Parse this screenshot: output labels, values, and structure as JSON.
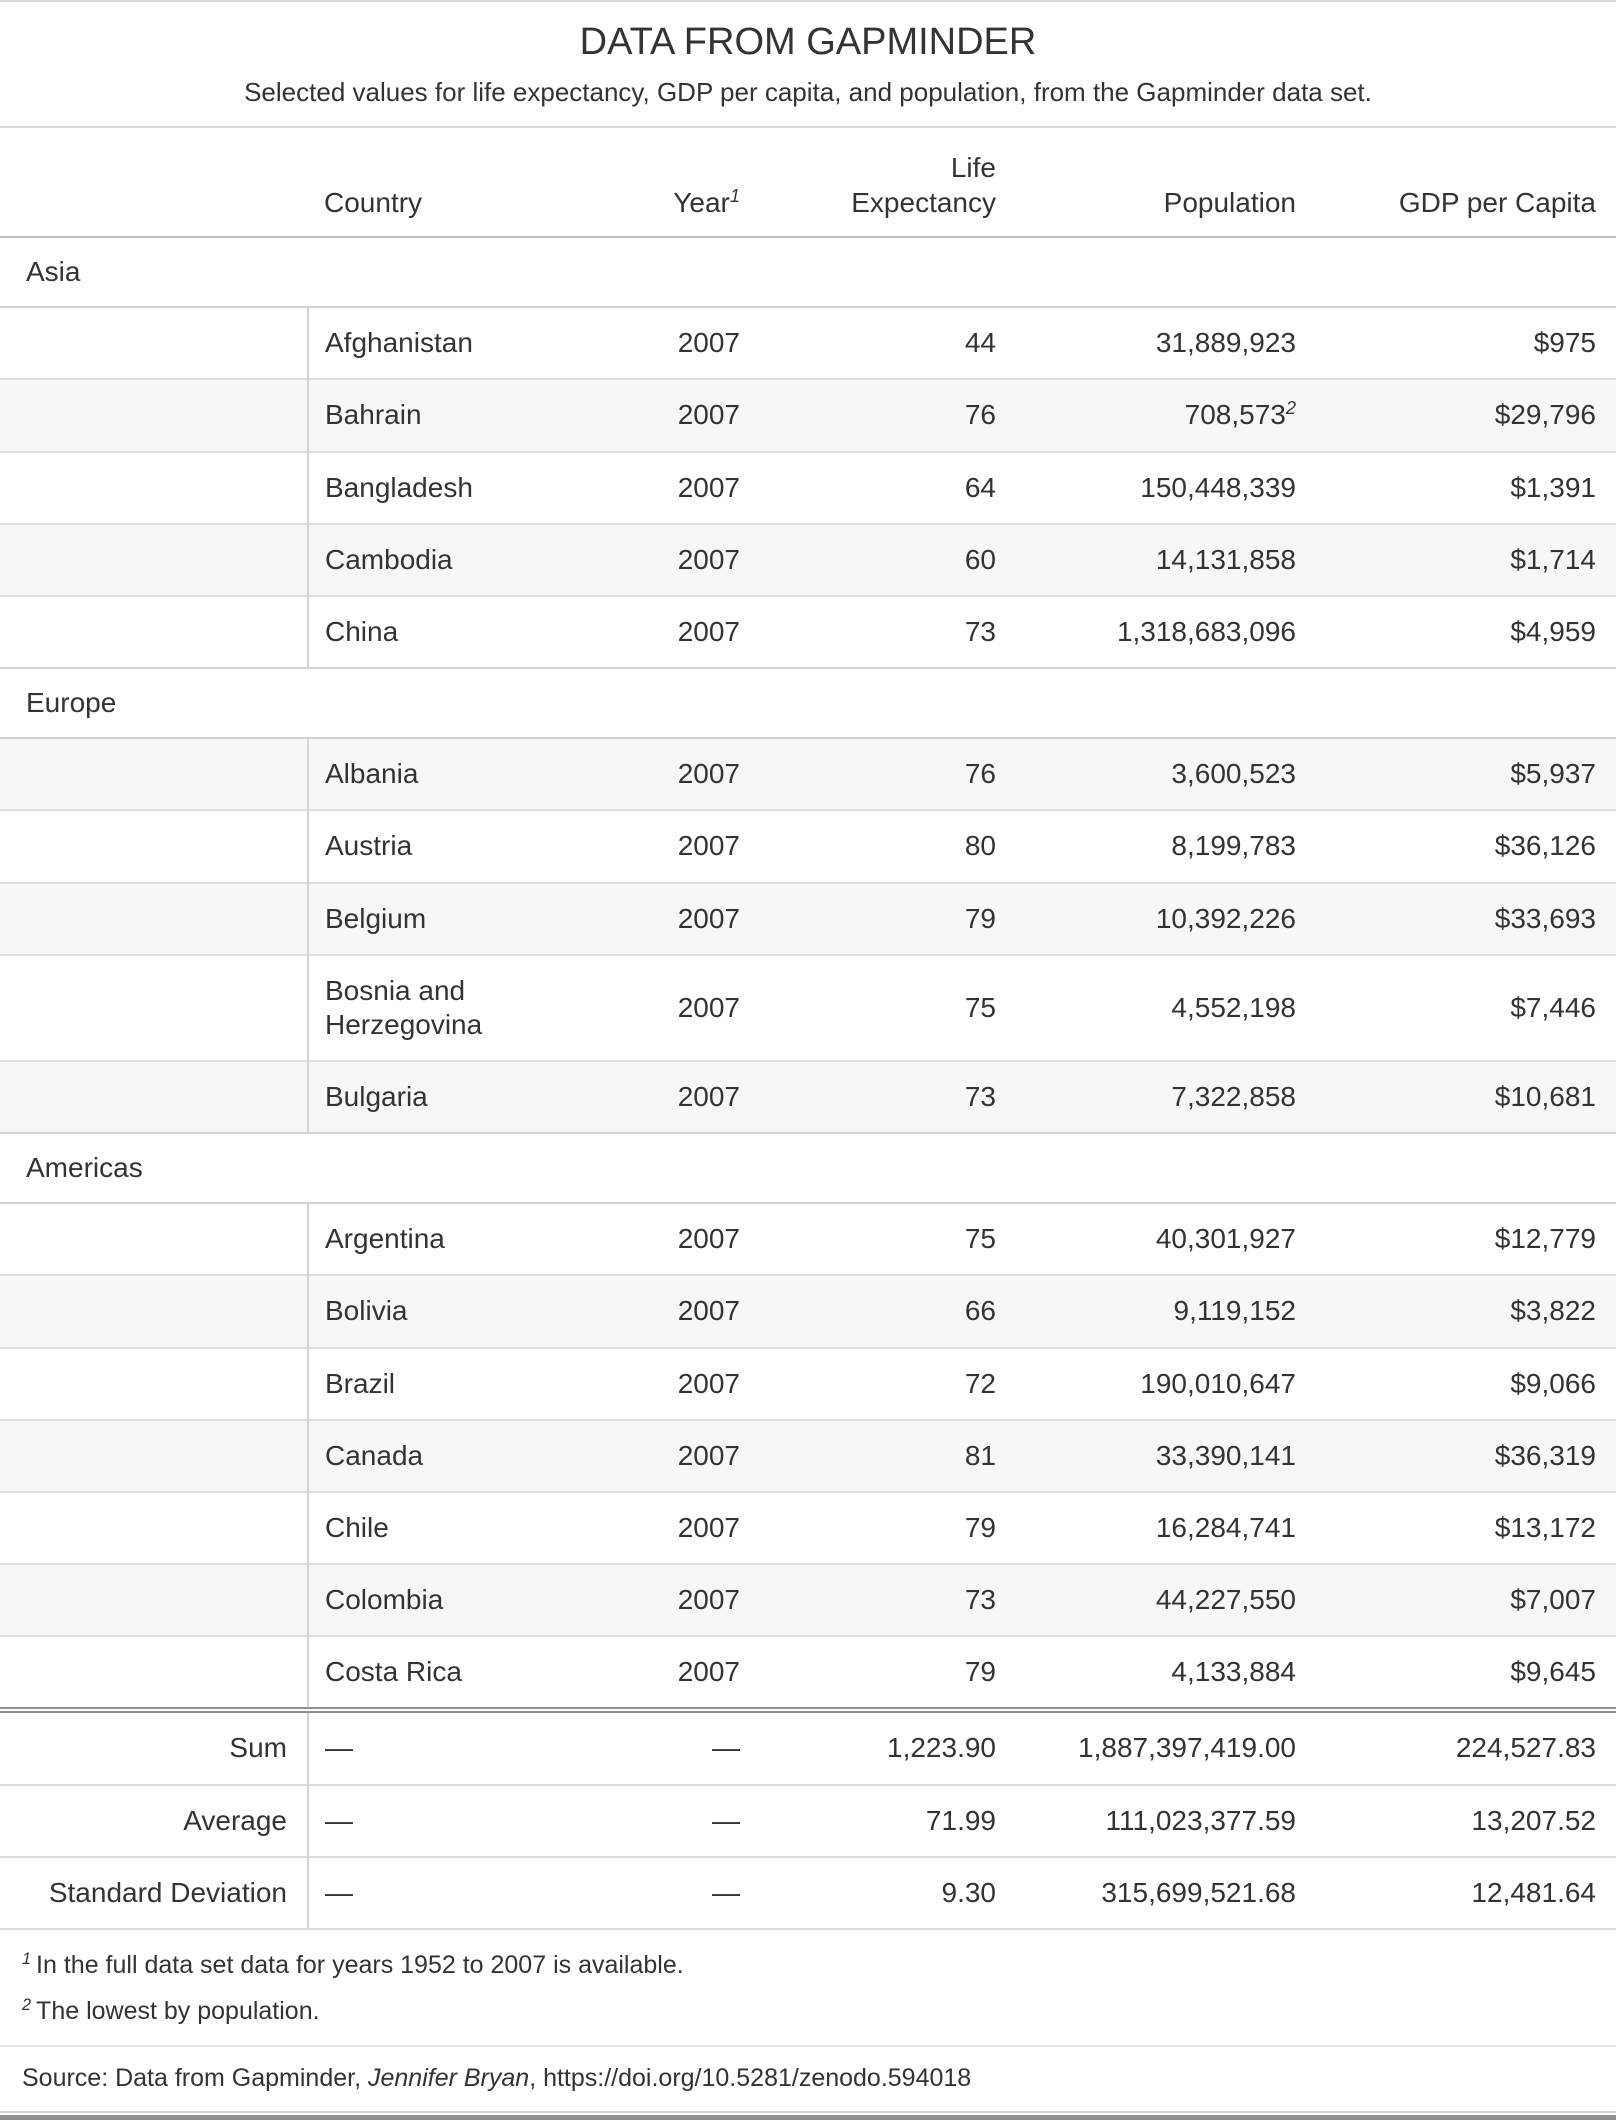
{
  "chart_data": {
    "type": "table",
    "title": "DATA FROM GAPMINDER",
    "subtitle": "Selected values for life expectancy, GDP per capita, and population, from the Gapminder data set.",
    "column_labels": {
      "stub": "",
      "country": "Country",
      "year": "Year",
      "year_footnote_mark": "1",
      "life_expectancy": "Life Expectancy",
      "population": "Population",
      "gdp_per_capita": "GDP per Capita"
    },
    "groups": [
      {
        "label": "Asia",
        "rows": [
          {
            "country": "Afghanistan",
            "year": "2007",
            "life_expectancy": "44",
            "population": "31,889,923",
            "gdp_per_capita": "$975"
          },
          {
            "country": "Bahrain",
            "year": "2007",
            "life_expectancy": "76",
            "population": "708,573",
            "population_footnote_mark": "2",
            "gdp_per_capita": "$29,796"
          },
          {
            "country": "Bangladesh",
            "year": "2007",
            "life_expectancy": "64",
            "population": "150,448,339",
            "gdp_per_capita": "$1,391"
          },
          {
            "country": "Cambodia",
            "year": "2007",
            "life_expectancy": "60",
            "population": "14,131,858",
            "gdp_per_capita": "$1,714"
          },
          {
            "country": "China",
            "year": "2007",
            "life_expectancy": "73",
            "population": "1,318,683,096",
            "gdp_per_capita": "$4,959"
          }
        ]
      },
      {
        "label": "Europe",
        "rows": [
          {
            "country": "Albania",
            "year": "2007",
            "life_expectancy": "76",
            "population": "3,600,523",
            "gdp_per_capita": "$5,937"
          },
          {
            "country": "Austria",
            "year": "2007",
            "life_expectancy": "80",
            "population": "8,199,783",
            "gdp_per_capita": "$36,126"
          },
          {
            "country": "Belgium",
            "year": "2007",
            "life_expectancy": "79",
            "population": "10,392,226",
            "gdp_per_capita": "$33,693"
          },
          {
            "country": "Bosnia and Herzegovina",
            "year": "2007",
            "life_expectancy": "75",
            "population": "4,552,198",
            "gdp_per_capita": "$7,446"
          },
          {
            "country": "Bulgaria",
            "year": "2007",
            "life_expectancy": "73",
            "population": "7,322,858",
            "gdp_per_capita": "$10,681"
          }
        ]
      },
      {
        "label": "Americas",
        "rows": [
          {
            "country": "Argentina",
            "year": "2007",
            "life_expectancy": "75",
            "population": "40,301,927",
            "gdp_per_capita": "$12,779"
          },
          {
            "country": "Bolivia",
            "year": "2007",
            "life_expectancy": "66",
            "population": "9,119,152",
            "gdp_per_capita": "$3,822"
          },
          {
            "country": "Brazil",
            "year": "2007",
            "life_expectancy": "72",
            "population": "190,010,647",
            "gdp_per_capita": "$9,066"
          },
          {
            "country": "Canada",
            "year": "2007",
            "life_expectancy": "81",
            "population": "33,390,141",
            "gdp_per_capita": "$36,319"
          },
          {
            "country": "Chile",
            "year": "2007",
            "life_expectancy": "79",
            "population": "16,284,741",
            "gdp_per_capita": "$13,172"
          },
          {
            "country": "Colombia",
            "year": "2007",
            "life_expectancy": "73",
            "population": "44,227,550",
            "gdp_per_capita": "$7,007"
          },
          {
            "country": "Costa Rica",
            "year": "2007",
            "life_expectancy": "79",
            "population": "4,133,884",
            "gdp_per_capita": "$9,645"
          }
        ]
      }
    ],
    "summary_rows": [
      {
        "label": "Sum",
        "country": "—",
        "year": "—",
        "life_expectancy": "1,223.90",
        "population": "1,887,397,419.00",
        "gdp_per_capita": "224,527.83"
      },
      {
        "label": "Average",
        "country": "—",
        "year": "—",
        "life_expectancy": "71.99",
        "population": "111,023,377.59",
        "gdp_per_capita": "13,207.52"
      },
      {
        "label": "Standard Deviation",
        "country": "—",
        "year": "—",
        "life_expectancy": "9.30",
        "population": "315,699,521.68",
        "gdp_per_capita": "12,481.64"
      }
    ],
    "footnotes": [
      {
        "mark": "1",
        "text": "In the full data set data for years 1952 to 2007 is available."
      },
      {
        "mark": "2",
        "text": "The lowest by population."
      }
    ],
    "source_note": {
      "prefix": "Source: Data from Gapminder, ",
      "author": "Jennifer Bryan",
      "suffix": ", https://doi.org/10.5281/zenodo.594018"
    }
  }
}
